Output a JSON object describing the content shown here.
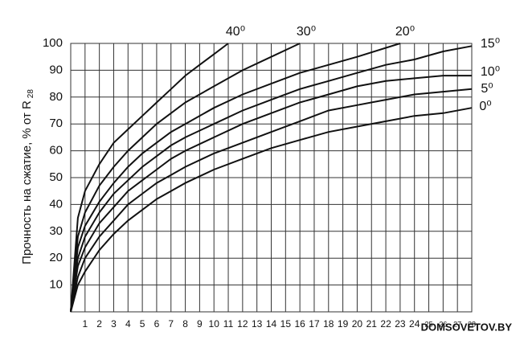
{
  "chart_data": {
    "type": "line",
    "y_label": "Прочность на сжатие, % от R",
    "y_label_sub": "28",
    "watermark": "DOMSOVETOV.BY",
    "xlim": [
      0,
      28
    ],
    "ylim": [
      0,
      100
    ],
    "xticks": [
      1,
      2,
      3,
      4,
      5,
      6,
      7,
      8,
      9,
      10,
      11,
      12,
      13,
      14,
      15,
      16,
      17,
      18,
      19,
      20,
      21,
      22,
      23,
      24,
      25,
      26,
      27,
      28
    ],
    "yticks": [
      10,
      20,
      30,
      40,
      50,
      60,
      70,
      80,
      90,
      100
    ],
    "grid": true,
    "series": [
      {
        "name": "40⁰",
        "color": "#111111",
        "x": [
          0,
          0.5,
          1,
          2,
          3,
          4,
          5,
          6,
          7,
          8,
          9,
          10,
          11
        ],
        "values": [
          0,
          35,
          45,
          55,
          63,
          68,
          73,
          78,
          83,
          88,
          92,
          96,
          100
        ]
      },
      {
        "name": "30⁰",
        "color": "#111111",
        "x": [
          0,
          0.5,
          1,
          2,
          3,
          4,
          5,
          6,
          7,
          8,
          10,
          12,
          14,
          16
        ],
        "values": [
          0,
          28,
          37,
          47,
          54,
          60,
          65,
          70,
          74,
          78,
          84,
          90,
          95,
          100
        ]
      },
      {
        "name": "20⁰",
        "color": "#111111",
        "x": [
          0,
          0.5,
          1,
          2,
          3,
          4,
          5,
          6,
          7,
          8,
          10,
          12,
          14,
          16,
          18,
          20,
          23
        ],
        "values": [
          0,
          24,
          32,
          41,
          48,
          54,
          59,
          63,
          67,
          70,
          76,
          81,
          85,
          89,
          92,
          95,
          100
        ]
      },
      {
        "name": "15⁰",
        "color": "#111111",
        "x": [
          0,
          0.5,
          1,
          2,
          3,
          4,
          5,
          6,
          7,
          8,
          10,
          12,
          14,
          16,
          18,
          20,
          22,
          24,
          26,
          28
        ],
        "values": [
          0,
          20,
          28,
          37,
          44,
          49,
          54,
          58,
          62,
          65,
          70,
          75,
          79,
          83,
          86,
          89,
          92,
          94,
          97,
          99
        ]
      },
      {
        "name": "10⁰",
        "color": "#111111",
        "x": [
          0,
          0.5,
          1,
          2,
          3,
          4,
          5,
          6,
          7,
          8,
          10,
          12,
          14,
          16,
          18,
          20,
          22,
          24,
          26,
          28
        ],
        "values": [
          0,
          17,
          24,
          33,
          39,
          45,
          49,
          53,
          57,
          60,
          65,
          70,
          74,
          78,
          81,
          84,
          86,
          87,
          88,
          88
        ]
      },
      {
        "name": "5⁰",
        "color": "#111111",
        "x": [
          0,
          0.5,
          1,
          2,
          3,
          4,
          5,
          6,
          7,
          8,
          10,
          12,
          14,
          16,
          18,
          20,
          22,
          24,
          26,
          28
        ],
        "values": [
          0,
          13,
          20,
          28,
          34,
          40,
          44,
          48,
          51,
          54,
          59,
          63,
          67,
          71,
          75,
          77,
          79,
          81,
          82,
          83
        ]
      },
      {
        "name": "0⁰",
        "color": "#111111",
        "x": [
          0,
          0.5,
          1,
          2,
          3,
          4,
          5,
          6,
          7,
          8,
          10,
          12,
          14,
          16,
          18,
          20,
          22,
          24,
          26,
          28
        ],
        "values": [
          0,
          10,
          15,
          23,
          29,
          34,
          38,
          42,
          45,
          48,
          53,
          57,
          61,
          64,
          67,
          69,
          71,
          73,
          74,
          76
        ]
      }
    ]
  }
}
